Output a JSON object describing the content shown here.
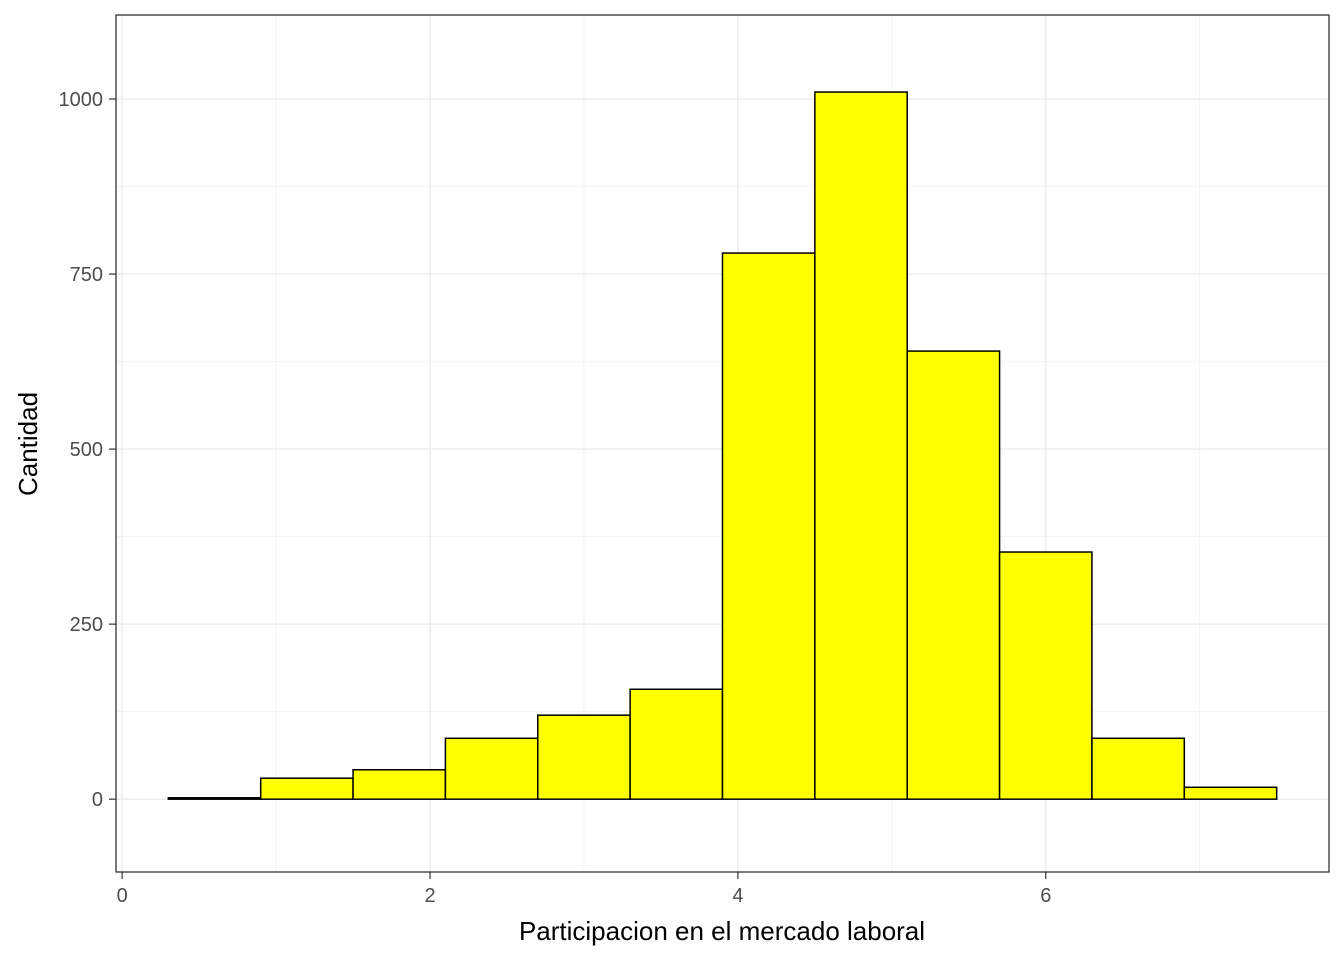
{
  "chart_data": {
    "type": "bar",
    "xlabel": "Participacion en el mercado laboral",
    "ylabel": "Cantidad",
    "xlim": [
      -0.04,
      7.84
    ],
    "ylim": [
      -104,
      1120
    ],
    "x_ticks": [
      0,
      2,
      4,
      6
    ],
    "x_tick_labels": [
      "0",
      "2",
      "4",
      "6"
    ],
    "x_minor_ticks": [
      1,
      3,
      5,
      7
    ],
    "y_ticks": [
      0,
      250,
      500,
      750,
      1000
    ],
    "y_tick_labels": [
      "0",
      "250",
      "500",
      "750",
      "1000"
    ],
    "y_minor_ticks": [
      125,
      375,
      625,
      875
    ],
    "grid": true,
    "bin_edges": [
      0.3,
      0.9,
      1.5,
      2.1,
      2.7,
      3.3,
      3.9,
      4.5,
      5.1,
      5.7,
      6.3,
      6.9,
      7.5
    ],
    "values": [
      2,
      30,
      42,
      87,
      120,
      157,
      780,
      1010,
      640,
      353,
      87,
      17
    ],
    "bar_fill": "#ffff00",
    "bar_outline": "#000000"
  }
}
